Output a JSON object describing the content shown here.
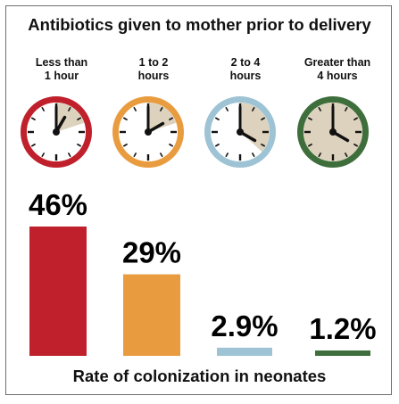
{
  "title": "Antibiotics given to mother prior to delivery",
  "footer": "Rate of colonization in neonates",
  "clocks": [
    {
      "line1": "Less than",
      "line2": "1 hour",
      "color": "#c0202b",
      "hour_hand_to": 1,
      "shaded_minutes": 12
    },
    {
      "line1": "1 to 2",
      "line2": "hours",
      "color": "#e99c3f",
      "hour_hand_to": 2,
      "shaded_minutes": 12
    },
    {
      "line1": "2 to 4",
      "line2": "hours",
      "color": "#9dc3d4",
      "hour_hand_to": 4,
      "shaded_minutes": 22
    },
    {
      "line1": "Greater than",
      "line2": "4 hours",
      "color": "#3e6e3c",
      "hour_hand_to": 4,
      "shaded_minutes": 60
    }
  ],
  "colors": {
    "clock_fill": "#ddd2bd"
  },
  "chart_data": {
    "type": "bar",
    "categories": [
      "Less than 1 hour",
      "1 to 2 hours",
      "2 to 4 hours",
      "Greater than 4 hours"
    ],
    "values": [
      46,
      29,
      2.9,
      1.2
    ],
    "value_labels": [
      "46%",
      "29%",
      "2.9%",
      "1.2%"
    ],
    "colors": [
      "#c0202b",
      "#e99c3f",
      "#9dc3d4",
      "#3e6e3c"
    ],
    "title": "Antibiotics given to mother prior to delivery",
    "xlabel": "Rate of colonization in neonates",
    "ylabel": "",
    "ylim": [
      0,
      46
    ]
  }
}
